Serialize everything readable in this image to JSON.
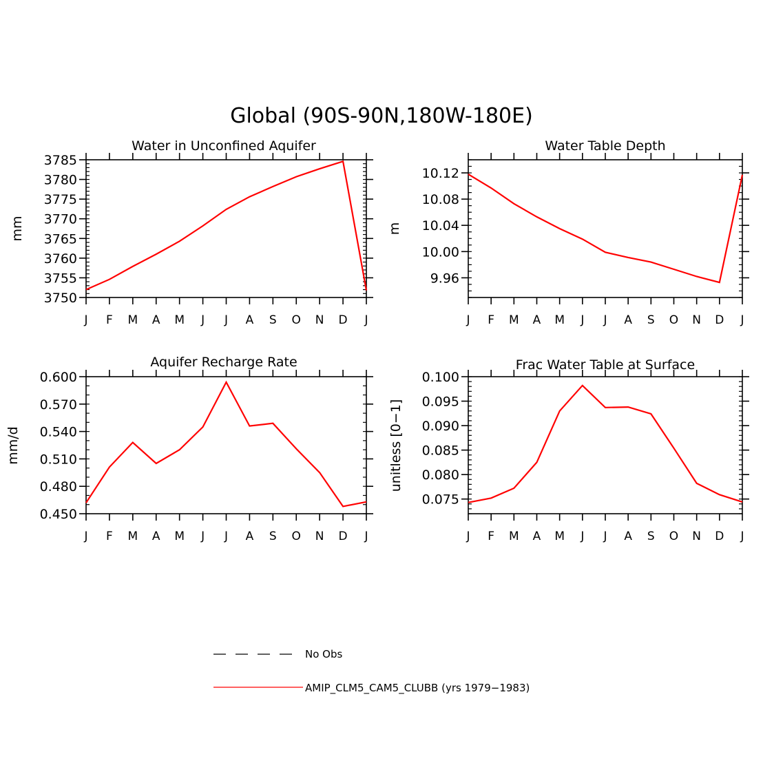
{
  "figure": {
    "title": "Global (90S-90N,180W-180E)"
  },
  "legend": {
    "placement": "bottom-center",
    "items": [
      {
        "label": "No Obs",
        "style": "dashed",
        "color": "#000000"
      },
      {
        "label": "AMIP_CLM5_CAM5_CLUBB (yrs 1979−1983)",
        "style": "solid",
        "color": "#ff0000"
      }
    ]
  },
  "chart_data": [
    {
      "type": "line",
      "title": "Water in Unconfined Aquifer",
      "xlabel": "",
      "ylabel": "mm",
      "categories": [
        "J",
        "F",
        "M",
        "A",
        "M",
        "J",
        "J",
        "A",
        "S",
        "O",
        "N",
        "D",
        "J"
      ],
      "ylim": [
        3750,
        3785
      ],
      "yticks": [
        3750,
        3755,
        3760,
        3765,
        3770,
        3775,
        3780,
        3785
      ],
      "ytick_labels": [
        "3750",
        "3755",
        "3760",
        "3765",
        "3770",
        "3775",
        "3780",
        "3785"
      ],
      "yminor": 1,
      "series": [
        {
          "color": "#ff0000",
          "values": [
            3752.0,
            3754.6,
            3757.9,
            3761.0,
            3764.3,
            3768.2,
            3772.4,
            3775.6,
            3778.2,
            3780.7,
            3782.7,
            3784.6,
            3751.8
          ]
        }
      ]
    },
    {
      "type": "line",
      "title": "Water Table Depth",
      "xlabel": "",
      "ylabel": "m",
      "categories": [
        "J",
        "F",
        "M",
        "A",
        "M",
        "J",
        "J",
        "A",
        "S",
        "O",
        "N",
        "D",
        "J"
      ],
      "ylim": [
        9.93,
        10.14
      ],
      "yticks": [
        9.96,
        10.0,
        10.04,
        10.08,
        10.12
      ],
      "ytick_labels": [
        "9.96",
        "10.00",
        "10.04",
        "10.08",
        "10.12"
      ],
      "yminor": 0.01,
      "series": [
        {
          "color": "#ff0000",
          "values": [
            10.118,
            10.097,
            10.073,
            10.053,
            10.035,
            10.019,
            9.999,
            9.991,
            9.984,
            9.973,
            9.962,
            9.953,
            10.117
          ]
        }
      ]
    },
    {
      "type": "line",
      "title": "Aquifer Recharge Rate",
      "xlabel": "",
      "ylabel": "mm/d",
      "categories": [
        "J",
        "F",
        "M",
        "A",
        "M",
        "J",
        "J",
        "A",
        "S",
        "O",
        "N",
        "D",
        "J"
      ],
      "ylim": [
        0.45,
        0.6
      ],
      "yticks": [
        0.45,
        0.48,
        0.51,
        0.54,
        0.57,
        0.6
      ],
      "ytick_labels": [
        "0.450",
        "0.480",
        "0.510",
        "0.540",
        "0.570",
        "0.600"
      ],
      "yminor": 0.01,
      "series": [
        {
          "color": "#ff0000",
          "values": [
            0.462,
            0.501,
            0.528,
            0.505,
            0.52,
            0.545,
            0.594,
            0.546,
            0.549,
            0.521,
            0.495,
            0.458,
            0.463
          ]
        }
      ]
    },
    {
      "type": "line",
      "title": "Frac Water Table at Surface",
      "xlabel": "",
      "ylabel": "unitless [0−1]",
      "categories": [
        "J",
        "F",
        "M",
        "A",
        "M",
        "J",
        "J",
        "A",
        "S",
        "O",
        "N",
        "D",
        "J"
      ],
      "ylim": [
        0.072,
        0.1
      ],
      "yticks": [
        0.075,
        0.08,
        0.085,
        0.09,
        0.095,
        0.1
      ],
      "ytick_labels": [
        "0.075",
        "0.080",
        "0.085",
        "0.090",
        "0.095",
        "0.100"
      ],
      "yminor": 0.001,
      "series": [
        {
          "color": "#ff0000",
          "values": [
            0.0743,
            0.0752,
            0.0772,
            0.0825,
            0.093,
            0.0982,
            0.0937,
            0.0938,
            0.0924,
            0.0854,
            0.0782,
            0.0759,
            0.0744
          ]
        }
      ]
    }
  ]
}
